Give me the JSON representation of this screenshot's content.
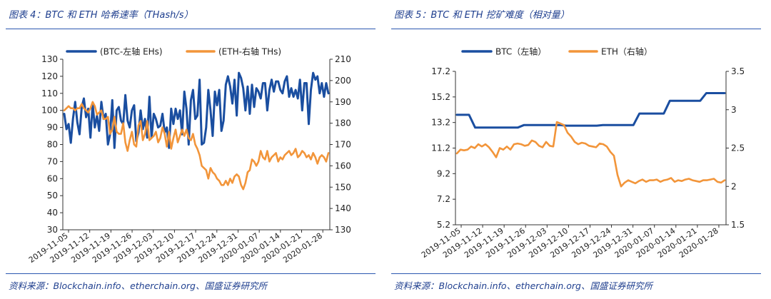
{
  "chart_data": [
    {
      "type": "line",
      "title": "图表 4：BTC 和 ETH 哈希速率（THash/s）",
      "source": "资料来源：Blockchain.info、etherchain.org、国盛证券研究所",
      "x_labels": [
        "2019-11-05",
        "2019-11-12",
        "2019-11-19",
        "2019-11-26",
        "2019-12-03",
        "2019-12-10",
        "2019-12-17",
        "2019-12-24",
        "2019-12-31",
        "2020-01-07",
        "2020-01-14",
        "2020-01-21",
        "2020-01-28"
      ],
      "left_axis": {
        "ylim": [
          30,
          130
        ],
        "ticks": [
          30,
          40,
          50,
          60,
          70,
          80,
          90,
          100,
          110,
          120,
          130
        ]
      },
      "right_axis": {
        "ylim": [
          130,
          210
        ],
        "ticks": [
          130,
          140,
          150,
          160,
          170,
          180,
          190,
          200,
          210
        ]
      },
      "grid": false,
      "legend": "top",
      "series": [
        {
          "name": "(BTC-左轴 EHs)",
          "axis": "left",
          "color": "#1a4ea0",
          "values": [
            98,
            89,
            92,
            81,
            95,
            105,
            93,
            86,
            102,
            107,
            96,
            101,
            84,
            104,
            90,
            97,
            88,
            105,
            95,
            98,
            80,
            86,
            106,
            78,
            100,
            102,
            94,
            92,
            109,
            94,
            90,
            100,
            103,
            82,
            87,
            100,
            89,
            95,
            84,
            108,
            84,
            98,
            95,
            90,
            91,
            98,
            87,
            90,
            78,
            101,
            92,
            101,
            95,
            100,
            86,
            111,
            101,
            80,
            106,
            112,
            95,
            97,
            118,
            80,
            81,
            90,
            112,
            100,
            85,
            111,
            103,
            112,
            88,
            94,
            115,
            120,
            114,
            104,
            118,
            97,
            122,
            119,
            113,
            100,
            114,
            98,
            115,
            102,
            113,
            111,
            107,
            116,
            116,
            100,
            112,
            118,
            111,
            117,
            117,
            112,
            110,
            117,
            120,
            108,
            113,
            108,
            112,
            107,
            118,
            100,
            116,
            116,
            92,
            112,
            122,
            118,
            120,
            110,
            116,
            108,
            116,
            110
          ]
        },
        {
          "name": "(ETH-右轴 THs)",
          "axis": "right",
          "color": "#f2953a",
          "values": [
            186,
            187,
            188,
            187,
            187,
            186,
            187,
            187,
            189,
            187,
            186,
            185,
            187,
            190,
            188,
            184,
            185,
            186,
            182,
            182,
            183,
            175,
            177,
            183,
            176,
            175,
            175,
            180,
            171,
            167,
            172,
            176,
            170,
            169,
            179,
            181,
            172,
            175,
            181,
            172,
            173,
            174,
            176,
            171,
            173,
            178,
            175,
            169,
            176,
            168,
            173,
            177,
            171,
            174,
            177,
            174,
            177,
            173,
            172,
            175,
            170,
            168,
            165,
            160,
            159,
            158,
            154,
            159,
            157,
            156,
            154,
            153,
            151,
            151,
            153,
            151,
            154,
            152,
            155,
            156,
            155,
            151,
            149,
            152,
            157,
            158,
            163,
            162,
            160,
            162,
            167,
            164,
            163,
            167,
            162,
            164,
            165,
            166,
            162,
            164,
            163,
            165,
            166,
            167,
            165,
            166,
            168,
            164,
            165,
            167,
            166,
            164,
            165,
            163,
            166,
            164,
            161,
            164,
            165,
            164,
            162,
            166
          ]
        }
      ]
    },
    {
      "type": "line",
      "title": "图表 5：BTC 和 ETH 挖矿难度（相对量）",
      "source": "资料来源：Blockchain.info、etherchain.org、国盛证券研究所",
      "x_labels": [
        "2019-11-05",
        "2019-11-12",
        "2019-11-19",
        "2019-11-26",
        "2019-12-03",
        "2019-12-10",
        "2019-12-17",
        "2019-12-24",
        "2019-12-31",
        "2020-01-07",
        "2020-01-14",
        "2020-01-21",
        "2020-01-28"
      ],
      "left_axis": {
        "ylim": [
          5.2,
          17.2
        ],
        "ticks": [
          5.2,
          7.2,
          9.2,
          11.2,
          13.2,
          15.2,
          17.2
        ]
      },
      "right_axis": {
        "ylim": [
          1.5,
          3.5
        ],
        "ticks": [
          1.5,
          2,
          2.5,
          3,
          3.5
        ]
      },
      "grid": false,
      "legend": "top",
      "series": [
        {
          "name": "BTC（左轴）",
          "axis": "left",
          "color": "#1a4ea0",
          "values": [
            13.8,
            13.8,
            13.8,
            12.8,
            12.8,
            12.8,
            12.8,
            12.8,
            12.8,
            12.8,
            12.8,
            13.0,
            13.0,
            13.0,
            13.0,
            13.0,
            13.0,
            13.0,
            12.95,
            12.95,
            12.95,
            12.95,
            12.95,
            12.95,
            13.0,
            13.0,
            13.0,
            13.0,
            13.0,
            13.0,
            13.9,
            13.9,
            13.9,
            13.9,
            13.9,
            14.9,
            14.9,
            14.9,
            14.9,
            14.9,
            14.9,
            15.5,
            15.5,
            15.5,
            15.5
          ]
        },
        {
          "name": "ETH（右轴）",
          "axis": "right",
          "color": "#f2953a",
          "values": [
            2.43,
            2.48,
            2.47,
            2.48,
            2.52,
            2.5,
            2.55,
            2.52,
            2.55,
            2.51,
            2.45,
            2.38,
            2.5,
            2.48,
            2.52,
            2.48,
            2.55,
            2.56,
            2.55,
            2.53,
            2.54,
            2.6,
            2.58,
            2.53,
            2.51,
            2.58,
            2.53,
            2.52,
            2.84,
            2.82,
            2.8,
            2.7,
            2.65,
            2.58,
            2.55,
            2.57,
            2.56,
            2.53,
            2.52,
            2.51,
            2.56,
            2.55,
            2.52,
            2.45,
            2.4,
            2.15,
            2.0,
            2.05,
            2.08,
            2.06,
            2.04,
            2.07,
            2.09,
            2.06,
            2.08,
            2.08,
            2.09,
            2.06,
            2.08,
            2.09,
            2.11,
            2.06,
            2.08,
            2.07,
            2.09,
            2.1,
            2.08,
            2.07,
            2.06,
            2.08,
            2.08,
            2.09,
            2.1,
            2.06,
            2.05,
            2.08
          ]
        }
      ]
    }
  ]
}
